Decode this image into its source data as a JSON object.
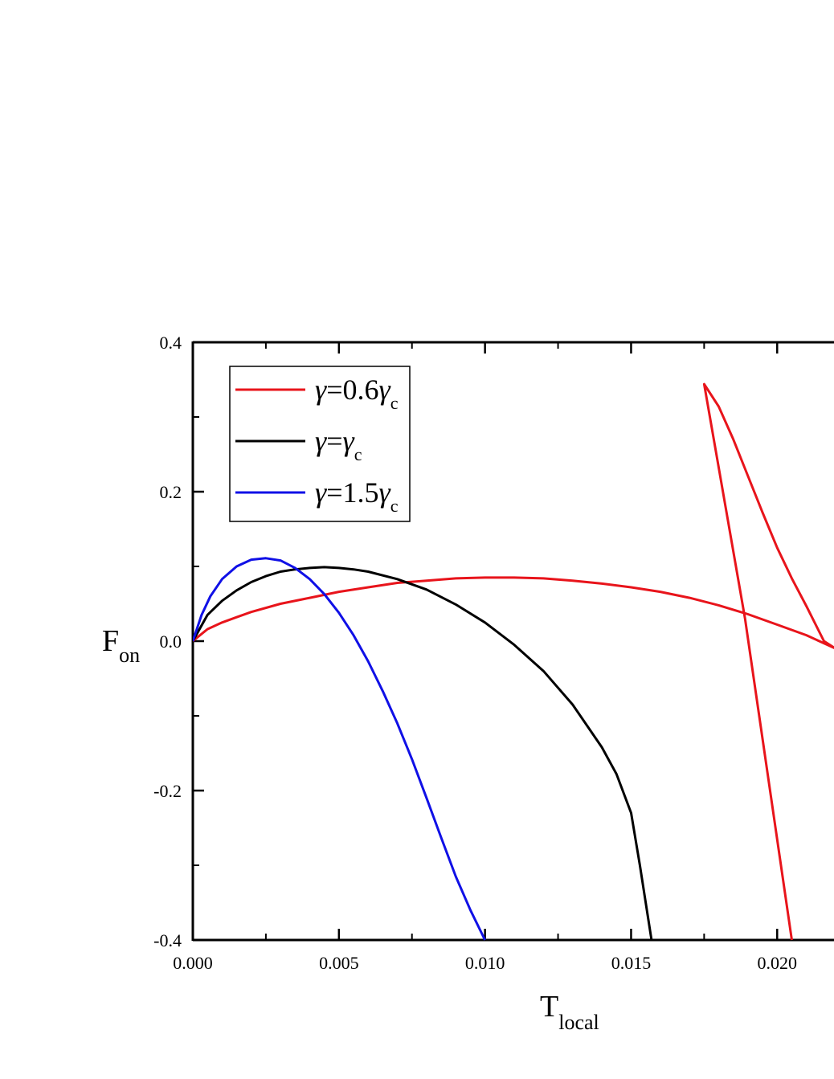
{
  "chart_data": {
    "type": "line",
    "xlabel": {
      "main": "T",
      "sub": "local"
    },
    "ylabel": {
      "main": "F",
      "sub": "on"
    },
    "xlim": [
      0.0,
      0.022
    ],
    "ylim": [
      -0.4,
      0.4
    ],
    "x_ticks": [
      "0.000",
      "0.005",
      "0.010",
      "0.015",
      "0.020"
    ],
    "x_tick_values": [
      0.0,
      0.005,
      0.01,
      0.015,
      0.02
    ],
    "x_minor_tick_values": [
      0.0025,
      0.0075,
      0.0125,
      0.0175
    ],
    "y_ticks": [
      "-0.4",
      "-0.2",
      "0.0",
      "0.2",
      "0.4"
    ],
    "y_tick_values": [
      -0.4,
      -0.2,
      0.0,
      0.2,
      0.4
    ],
    "y_minor_tick_values": [
      -0.3,
      -0.1,
      0.1,
      0.3
    ],
    "grid": false,
    "legend_position": "top-left",
    "series": [
      {
        "name": "γ=0.6γc",
        "legend": {
          "sym": "γ",
          "mid": "=0.6",
          "sym2": "γ",
          "sub": "c"
        },
        "color": "#e8141b",
        "points": [
          [
            0.0,
            0.0
          ],
          [
            0.0005,
            0.016
          ],
          [
            0.001,
            0.025
          ],
          [
            0.0015,
            0.032
          ],
          [
            0.002,
            0.039
          ],
          [
            0.003,
            0.05
          ],
          [
            0.004,
            0.058
          ],
          [
            0.005,
            0.066
          ],
          [
            0.006,
            0.072
          ],
          [
            0.007,
            0.078
          ],
          [
            0.008,
            0.081
          ],
          [
            0.009,
            0.084
          ],
          [
            0.01,
            0.085
          ],
          [
            0.011,
            0.085
          ],
          [
            0.012,
            0.084
          ],
          [
            0.013,
            0.081
          ],
          [
            0.014,
            0.077
          ],
          [
            0.015,
            0.072
          ],
          [
            0.016,
            0.066
          ],
          [
            0.017,
            0.058
          ],
          [
            0.018,
            0.048
          ],
          [
            0.019,
            0.036
          ],
          [
            0.02,
            0.022
          ],
          [
            0.021,
            0.008
          ],
          [
            0.022,
            -0.01
          ],
          [
            0.0216,
            0.0
          ],
          [
            0.021,
            0.047
          ],
          [
            0.0205,
            0.084
          ],
          [
            0.02,
            0.125
          ],
          [
            0.0195,
            0.172
          ],
          [
            0.019,
            0.221
          ],
          [
            0.0185,
            0.27
          ],
          [
            0.018,
            0.314
          ],
          [
            0.0175,
            0.344
          ],
          [
            0.0189,
            0.03
          ],
          [
            0.0205,
            -0.4
          ]
        ]
      },
      {
        "name": "γ=γc",
        "legend": {
          "sym": "γ",
          "mid": "=",
          "sym2": "γ",
          "sub": "c"
        },
        "color": "#000000",
        "points": [
          [
            0.0,
            0.0
          ],
          [
            0.0005,
            0.035
          ],
          [
            0.001,
            0.054
          ],
          [
            0.0015,
            0.068
          ],
          [
            0.002,
            0.079
          ],
          [
            0.0025,
            0.087
          ],
          [
            0.003,
            0.093
          ],
          [
            0.0035,
            0.096
          ],
          [
            0.004,
            0.098
          ],
          [
            0.0045,
            0.099
          ],
          [
            0.005,
            0.098
          ],
          [
            0.0055,
            0.096
          ],
          [
            0.006,
            0.093
          ],
          [
            0.007,
            0.083
          ],
          [
            0.008,
            0.069
          ],
          [
            0.009,
            0.049
          ],
          [
            0.01,
            0.025
          ],
          [
            0.011,
            -0.005
          ],
          [
            0.012,
            -0.04
          ],
          [
            0.013,
            -0.085
          ],
          [
            0.014,
            -0.142
          ],
          [
            0.0145,
            -0.178
          ],
          [
            0.015,
            -0.23
          ],
          [
            0.0153,
            -0.3
          ],
          [
            0.0157,
            -0.4
          ]
        ]
      },
      {
        "name": "γ=1.5γc",
        "legend": {
          "sym": "γ",
          "mid": "=1.5",
          "sym2": "γ",
          "sub": "c"
        },
        "color": "#1010e6",
        "points": [
          [
            0.0,
            0.0
          ],
          [
            0.0003,
            0.035
          ],
          [
            0.0006,
            0.06
          ],
          [
            0.001,
            0.083
          ],
          [
            0.0015,
            0.1
          ],
          [
            0.002,
            0.109
          ],
          [
            0.0025,
            0.111
          ],
          [
            0.003,
            0.108
          ],
          [
            0.0035,
            0.098
          ],
          [
            0.004,
            0.083
          ],
          [
            0.0045,
            0.063
          ],
          [
            0.005,
            0.038
          ],
          [
            0.0055,
            0.008
          ],
          [
            0.006,
            -0.027
          ],
          [
            0.0065,
            -0.067
          ],
          [
            0.007,
            -0.11
          ],
          [
            0.0075,
            -0.158
          ],
          [
            0.008,
            -0.21
          ],
          [
            0.0085,
            -0.263
          ],
          [
            0.009,
            -0.315
          ],
          [
            0.0095,
            -0.36
          ],
          [
            0.01,
            -0.4
          ]
        ]
      }
    ]
  }
}
